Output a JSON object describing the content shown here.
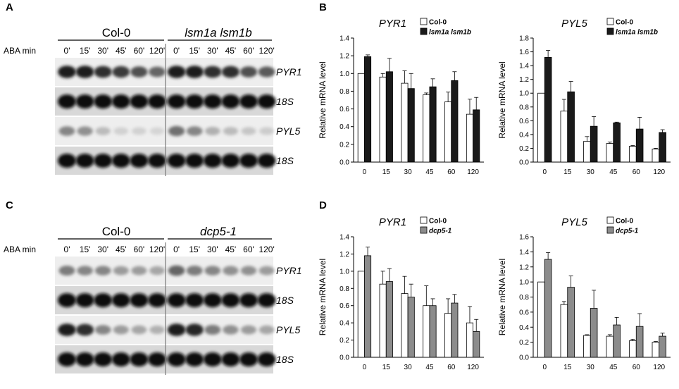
{
  "panels": {
    "A": "A",
    "B": "B",
    "C": "C",
    "D": "D"
  },
  "blots": [
    {
      "groups": [
        "Col-0",
        "lsm1a lsm1b"
      ],
      "row_label": "ABA min",
      "timepoints": [
        "0'",
        "15'",
        "30'",
        "45'",
        "60'",
        "120'",
        "0'",
        "15'",
        "30'",
        "45'",
        "60'",
        "120'"
      ],
      "bands": [
        "PYR1",
        "18S",
        "PYL5",
        "18S"
      ],
      "intensity": [
        [
          0.95,
          0.95,
          0.85,
          0.8,
          0.7,
          0.6,
          0.95,
          0.95,
          0.85,
          0.85,
          0.7,
          0.65
        ],
        [
          1,
          1,
          1,
          1,
          1,
          1,
          1,
          1,
          1,
          1,
          1,
          1
        ],
        [
          0.45,
          0.4,
          0.2,
          0.1,
          0.1,
          0.08,
          0.55,
          0.45,
          0.25,
          0.2,
          0.15,
          0.12
        ],
        [
          1,
          1,
          1,
          1,
          1,
          1,
          1,
          1,
          1,
          1,
          1,
          1
        ]
      ]
    },
    {
      "groups": [
        "Col-0",
        "dcp5-1"
      ],
      "row_label": "ABA min",
      "timepoints": [
        "0'",
        "15'",
        "30'",
        "45'",
        "60'",
        "120'",
        "0'",
        "15'",
        "30'",
        "45'",
        "60'",
        "120'"
      ],
      "bands": [
        "PYR1",
        "18S",
        "PYL5",
        "18S"
      ],
      "intensity": [
        [
          0.5,
          0.45,
          0.45,
          0.35,
          0.35,
          0.3,
          0.6,
          0.5,
          0.45,
          0.4,
          0.4,
          0.35
        ],
        [
          1,
          1,
          1,
          1,
          1,
          1,
          1,
          1,
          1,
          1,
          1,
          1
        ],
        [
          0.95,
          0.85,
          0.45,
          0.35,
          0.3,
          0.25,
          0.95,
          0.9,
          0.5,
          0.4,
          0.35,
          0.3
        ],
        [
          1,
          1,
          1,
          1,
          1,
          1,
          1,
          1,
          1,
          1,
          1,
          1
        ]
      ]
    }
  ],
  "colors": {
    "wt": "#ffffff",
    "lsm": "#1a1a1a",
    "dcp": "#8c8c8c"
  },
  "chart_data": [
    {
      "type": "bar",
      "title": "PYR1",
      "ylabel": "Relative mRNA level",
      "categories": [
        "0",
        "15",
        "30",
        "45",
        "60",
        "120"
      ],
      "ylim": [
        0,
        1.4
      ],
      "yticks": [
        "0.0",
        "0.2",
        "0.4",
        "0.6",
        "0.8",
        "1.0",
        "1.2",
        "1.4"
      ],
      "legend_position": "top-right",
      "series": [
        {
          "name": "Col-0",
          "color": "#ffffff",
          "values": [
            1.0,
            0.96,
            0.89,
            0.76,
            0.68,
            0.54
          ],
          "errors": [
            0.0,
            0.04,
            0.14,
            0.02,
            0.11,
            0.17
          ]
        },
        {
          "name": "lsm1a lsm1b",
          "color": "#1a1a1a",
          "values": [
            1.19,
            1.02,
            0.83,
            0.85,
            0.92,
            0.59
          ],
          "errors": [
            0.02,
            0.15,
            0.17,
            0.09,
            0.1,
            0.14
          ]
        }
      ]
    },
    {
      "type": "bar",
      "title": "PYL5",
      "ylabel": "Relative mRNA level",
      "categories": [
        "0",
        "15",
        "30",
        "45",
        "60",
        "120"
      ],
      "ylim": [
        0,
        1.8
      ],
      "yticks": [
        "0.0",
        "0.2",
        "0.4",
        "0.6",
        "0.8",
        "1.0",
        "1.2",
        "1.4",
        "1.6",
        "1.8"
      ],
      "legend_position": "top-right",
      "series": [
        {
          "name": "Col-0",
          "color": "#ffffff",
          "values": [
            1.0,
            0.74,
            0.3,
            0.27,
            0.23,
            0.19
          ],
          "errors": [
            0.0,
            0.17,
            0.07,
            0.02,
            0.01,
            0.01
          ]
        },
        {
          "name": "lsm1a lsm1b",
          "color": "#1a1a1a",
          "values": [
            1.52,
            1.02,
            0.52,
            0.57,
            0.48,
            0.43
          ],
          "errors": [
            0.1,
            0.15,
            0.14,
            0.01,
            0.17,
            0.04
          ]
        }
      ]
    },
    {
      "type": "bar",
      "title": "PYR1",
      "ylabel": "Relative mRNA level",
      "categories": [
        "0",
        "15",
        "30",
        "45",
        "60",
        "120"
      ],
      "ylim": [
        0,
        1.4
      ],
      "yticks": [
        "0.0",
        "0.2",
        "0.4",
        "0.6",
        "0.8",
        "1.0",
        "1.2",
        "1.4"
      ],
      "legend_position": "top-right",
      "series": [
        {
          "name": "Col-0",
          "color": "#ffffff",
          "values": [
            1.0,
            0.85,
            0.74,
            0.6,
            0.51,
            0.4
          ],
          "errors": [
            0.0,
            0.15,
            0.2,
            0.23,
            0.17,
            0.19
          ]
        },
        {
          "name": "dcp5-1",
          "color": "#8c8c8c",
          "values": [
            1.18,
            0.88,
            0.7,
            0.6,
            0.63,
            0.3
          ],
          "errors": [
            0.1,
            0.15,
            0.15,
            0.08,
            0.1,
            0.14
          ]
        }
      ]
    },
    {
      "type": "bar",
      "title": "PYL5",
      "ylabel": "Relative mRNA level",
      "categories": [
        "0",
        "15",
        "30",
        "45",
        "60",
        "120"
      ],
      "ylim": [
        0,
        1.6
      ],
      "yticks": [
        "0.0",
        "0.2",
        "0.4",
        "0.6",
        "0.8",
        "1.0",
        "1.2",
        "1.4",
        "1.6"
      ],
      "legend_position": "top-right",
      "series": [
        {
          "name": "Col-0",
          "color": "#ffffff",
          "values": [
            1.0,
            0.7,
            0.29,
            0.28,
            0.22,
            0.2
          ],
          "errors": [
            0.0,
            0.04,
            0.01,
            0.02,
            0.02,
            0.01
          ]
        },
        {
          "name": "dcp5-1",
          "color": "#8c8c8c",
          "values": [
            1.3,
            0.93,
            0.65,
            0.43,
            0.41,
            0.28
          ],
          "errors": [
            0.09,
            0.15,
            0.24,
            0.1,
            0.17,
            0.04
          ]
        }
      ]
    }
  ]
}
